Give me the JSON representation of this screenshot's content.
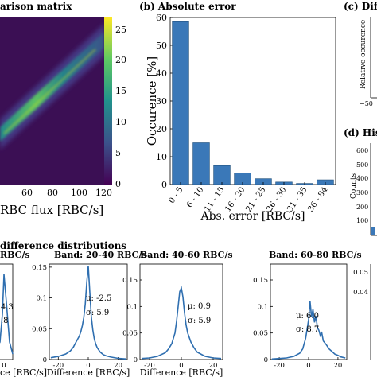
{
  "panels": {
    "a": {
      "title": "arison matrix",
      "xlabel": "RBC flux [RBC/s]",
      "xticks": [
        "60",
        "80",
        "100",
        "120"
      ],
      "cbar_ticks": [
        "25",
        "20",
        "15",
        "10",
        "5",
        "0"
      ]
    },
    "b": {
      "title": "(b) Absolute error"
    },
    "c": {
      "title": "(c) Dif",
      "ylabel": "Relative occurence",
      "xtick": "−50"
    },
    "d": {
      "title": "(d) His",
      "ylabel": "Counts",
      "yticks": [
        "600",
        "500",
        "400",
        "300",
        "200",
        "100"
      ]
    },
    "e": {
      "title": "difference distributions"
    }
  },
  "colorbar": {
    "colors": [
      "#440154",
      "#3b528b",
      "#21918c",
      "#5ec962",
      "#fde725"
    ],
    "max": 27
  },
  "chart_data": [
    {
      "type": "heatmap",
      "title": "arison matrix",
      "xlabel": "RBC flux [RBC/s]",
      "xlim": [
        40,
        120
      ],
      "zlim": [
        0,
        27
      ],
      "note": "diagonal band of high counts along y = x"
    },
    {
      "type": "bar",
      "title": "(b) Absolute error",
      "xlabel": "Abs. error [RBC/s]",
      "ylabel": "Occurence [%]",
      "categories": [
        "0 - 5",
        "6 - 10",
        "11 - 15",
        "16 - 20",
        "21 - 25",
        "26 - 30",
        "31 - 35",
        "36 - 84"
      ],
      "values": [
        58.5,
        15,
        6.8,
        4.1,
        2.1,
        0.9,
        0.4,
        1.7
      ],
      "ylim": [
        0,
        60
      ],
      "yticks": [
        0,
        10,
        20,
        30,
        40,
        50,
        60
      ],
      "color": "#3a78b8"
    },
    {
      "type": "line",
      "title": "Band: 20-40 RBC/s",
      "xlabel": "Difference [RBC/s]",
      "xlim": [
        -26,
        26
      ],
      "ylim": [
        0,
        0.155
      ],
      "xticks": [
        -20,
        0,
        20
      ],
      "yticks": [
        0,
        0.05,
        0.1,
        0.15
      ],
      "mu": "μ: -2.5",
      "sigma": "σ: 5.9",
      "x": [
        -25,
        -20,
        -15,
        -12,
        -10,
        -8,
        -6,
        -5,
        -4,
        -3,
        -2,
        -1,
        0,
        1,
        2,
        3,
        4,
        5,
        6,
        8,
        10,
        12,
        15,
        20,
        25
      ],
      "y": [
        0.003,
        0.005,
        0.009,
        0.014,
        0.02,
        0.029,
        0.038,
        0.045,
        0.055,
        0.068,
        0.09,
        0.125,
        0.152,
        0.11,
        0.07,
        0.048,
        0.034,
        0.025,
        0.019,
        0.012,
        0.008,
        0.006,
        0.004,
        0.002,
        0.001
      ]
    },
    {
      "type": "line",
      "title": "Band: 40-60 RBC/s",
      "xlabel": "Difference [RBC/s]",
      "xlim": [
        -26,
        26
      ],
      "ylim": [
        0,
        0.18
      ],
      "xticks": [
        -20,
        0,
        20
      ],
      "yticks": [
        0,
        0.05,
        0.1,
        0.15
      ],
      "mu": "μ: 0.9",
      "sigma": "σ: 5.9",
      "x": [
        -25,
        -20,
        -15,
        -10,
        -8,
        -6,
        -4,
        -3,
        -2,
        -1,
        0,
        1,
        2,
        3,
        4,
        6,
        8,
        10,
        15,
        20,
        25
      ],
      "y": [
        0.002,
        0.003,
        0.006,
        0.013,
        0.02,
        0.03,
        0.05,
        0.072,
        0.1,
        0.128,
        0.135,
        0.118,
        0.088,
        0.065,
        0.05,
        0.033,
        0.022,
        0.014,
        0.006,
        0.003,
        0.002
      ]
    },
    {
      "type": "line",
      "title": "Band: 60-80 RBC/s",
      "xlabel": "",
      "xlim": [
        -26,
        26
      ],
      "ylim": [
        0,
        0.18
      ],
      "xticks": [
        -20,
        0,
        20
      ],
      "yticks": [
        0,
        0.05,
        0.1,
        0.15
      ],
      "mu": "μ: 6.0",
      "sigma": "σ: 8.7",
      "x": [
        -25,
        -20,
        -15,
        -10,
        -6,
        -4,
        -2,
        0,
        1,
        2,
        3,
        4,
        5,
        6,
        7,
        8,
        9,
        10,
        12,
        14,
        16,
        18,
        20,
        22,
        25
      ],
      "y": [
        0.001,
        0.002,
        0.003,
        0.006,
        0.012,
        0.02,
        0.04,
        0.075,
        0.11,
        0.08,
        0.095,
        0.07,
        0.082,
        0.06,
        0.055,
        0.045,
        0.05,
        0.035,
        0.028,
        0.02,
        0.015,
        0.01,
        0.008,
        0.005,
        0.003
      ]
    }
  ],
  "left_partial": {
    "title": "RBC/s",
    "mu": "4.3",
    "sigma": ".8",
    "xtick": "0",
    "xlabel": "ce [RBC/s]"
  },
  "right_partial": {
    "ytick_top": "0.05",
    "ytick_mid": "0.04"
  }
}
